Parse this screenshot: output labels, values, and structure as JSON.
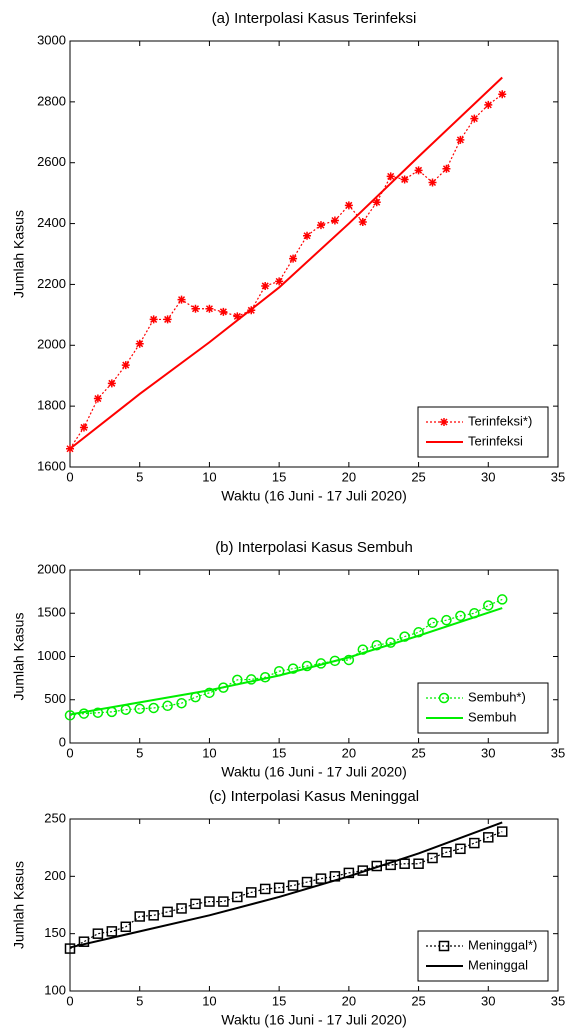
{
  "chart_data": [
    {
      "type": "line",
      "title": "(a) Interpolasi Kasus Terinfeksi",
      "xlabel": "Waktu (16 Juni - 17 Juli 2020)",
      "ylabel": "Jumlah Kasus",
      "xlim": [
        0,
        35
      ],
      "xticks": [
        0,
        5,
        10,
        15,
        20,
        25,
        30,
        35
      ],
      "ylim": [
        1600,
        3000
      ],
      "yticks": [
        1600,
        1800,
        2000,
        2200,
        2400,
        2600,
        2800,
        3000
      ],
      "legend": "lower right",
      "series": [
        {
          "name": "Terinfeksi*)",
          "color": "#ff0000",
          "linestyle": "dotted",
          "marker": "star",
          "x": [
            0,
            1,
            2,
            3,
            4,
            5,
            6,
            7,
            8,
            9,
            10,
            11,
            12,
            13,
            14,
            15,
            16,
            17,
            18,
            19,
            20,
            21,
            22,
            23,
            24,
            25,
            26,
            27,
            28,
            29,
            30,
            31
          ],
          "values": [
            1660,
            1730,
            1825,
            1875,
            1935,
            2005,
            2085,
            2085,
            2150,
            2120,
            2120,
            2110,
            2095,
            2115,
            2195,
            2210,
            2285,
            2360,
            2395,
            2410,
            2460,
            2405,
            2470,
            2555,
            2545,
            2575,
            2535,
            2580,
            2675,
            2745,
            2790,
            2825
          ]
        },
        {
          "name": "Terinfeksi",
          "color": "#ff0000",
          "linestyle": "solid",
          "marker": "none",
          "x": [
            0,
            5,
            10,
            15,
            20,
            25,
            31
          ],
          "values": [
            1660,
            1840,
            2010,
            2190,
            2400,
            2620,
            2880
          ]
        }
      ]
    },
    {
      "type": "line",
      "title": "(b) Interpolasi Kasus Sembuh",
      "xlabel": "Waktu (16 Juni - 17 Juli 2020)",
      "ylabel": "Jumlah Kasus",
      "xlim": [
        0,
        35
      ],
      "xticks": [
        0,
        5,
        10,
        15,
        20,
        25,
        30,
        35
      ],
      "ylim": [
        0,
        2000
      ],
      "yticks": [
        0,
        500,
        1000,
        1500,
        2000
      ],
      "legend": "lower right",
      "series": [
        {
          "name": "Sembuh*)",
          "color": "#00ee00",
          "linestyle": "dotted",
          "marker": "circle",
          "x": [
            0,
            1,
            2,
            3,
            4,
            5,
            6,
            7,
            8,
            9,
            10,
            11,
            12,
            13,
            14,
            15,
            16,
            17,
            18,
            19,
            20,
            21,
            22,
            23,
            24,
            25,
            26,
            27,
            28,
            29,
            30,
            31
          ],
          "values": [
            320,
            340,
            350,
            360,
            385,
            395,
            405,
            430,
            460,
            530,
            580,
            640,
            730,
            735,
            760,
            830,
            860,
            890,
            920,
            950,
            960,
            1080,
            1130,
            1160,
            1230,
            1280,
            1390,
            1420,
            1470,
            1500,
            1590,
            1660
          ]
        },
        {
          "name": "Sembuh",
          "color": "#00ee00",
          "linestyle": "solid",
          "marker": "none",
          "x": [
            0,
            5,
            10,
            15,
            20,
            25,
            31
          ],
          "values": [
            330,
            470,
            610,
            780,
            990,
            1240,
            1560
          ]
        }
      ]
    },
    {
      "type": "line",
      "title": "(c) Interpolasi Kasus Meninggal",
      "xlabel": "Waktu (16 Juni - 17 Juli 2020)",
      "ylabel": "Jumlah Kasus",
      "xlim": [
        0,
        35
      ],
      "xticks": [
        0,
        5,
        10,
        15,
        20,
        25,
        30,
        35
      ],
      "ylim": [
        100,
        250
      ],
      "yticks": [
        100,
        150,
        200,
        250
      ],
      "legend": "lower right",
      "series": [
        {
          "name": "Meninggal*)",
          "color": "#000000",
          "linestyle": "dotted",
          "marker": "square",
          "x": [
            0,
            1,
            2,
            3,
            4,
            5,
            6,
            7,
            8,
            9,
            10,
            11,
            12,
            13,
            14,
            15,
            16,
            17,
            18,
            19,
            20,
            21,
            22,
            23,
            24,
            25,
            26,
            27,
            28,
            29,
            30,
            31
          ],
          "values": [
            137,
            143,
            150,
            152,
            156,
            165,
            166,
            169,
            172,
            176,
            178,
            178,
            182,
            186,
            189,
            190,
            192,
            195,
            198,
            200,
            203,
            205,
            209,
            210,
            211,
            211,
            216,
            221,
            224,
            229,
            234,
            239
          ]
        },
        {
          "name": "Meninggal",
          "color": "#000000",
          "linestyle": "solid",
          "marker": "none",
          "x": [
            0,
            5,
            10,
            15,
            20,
            25,
            31
          ],
          "values": [
            138,
            152,
            166,
            182,
            200,
            220,
            247
          ]
        }
      ]
    }
  ]
}
